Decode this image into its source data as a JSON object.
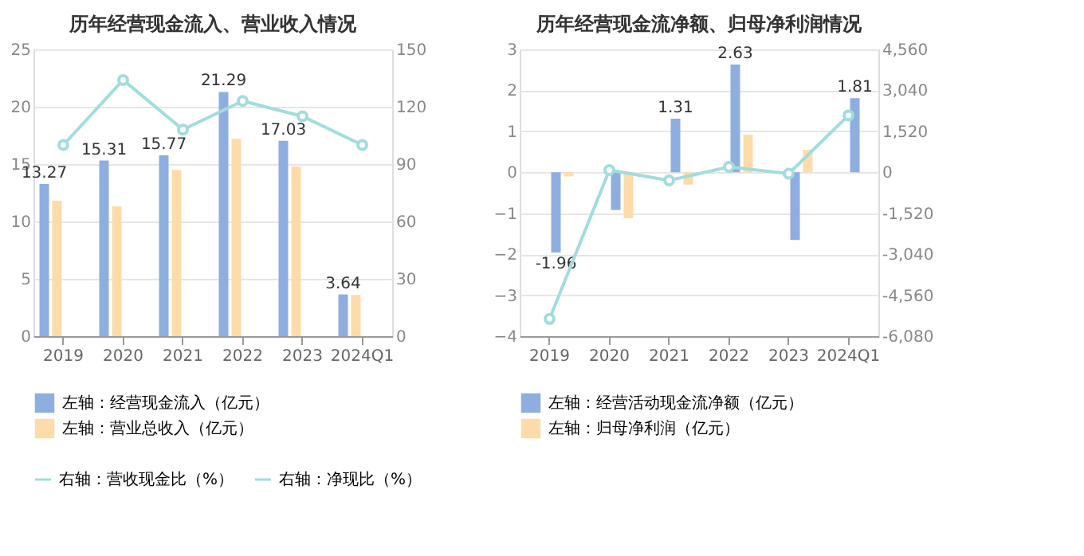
{
  "chart_data": [
    {
      "type": "bar",
      "title": "历年经营现金流入、营业收入情况",
      "categories": [
        "2019",
        "2020",
        "2021",
        "2022",
        "2023",
        "2024Q1"
      ],
      "series": [
        {
          "name": "左轴：经营现金流入（亿元）",
          "color": "#8eaee0",
          "values": [
            13.27,
            15.31,
            15.77,
            21.29,
            17.03,
            3.64
          ],
          "value_labels": [
            "13.27",
            "15.31",
            "15.77",
            "21.29",
            "17.03",
            "3.64"
          ]
        },
        {
          "name": "左轴：营业总收入（亿元）",
          "color": "#fddcaa",
          "values": [
            11.8,
            11.3,
            14.5,
            17.2,
            14.8,
            3.6
          ]
        },
        {
          "name": "右轴：营收现金比（%）",
          "type": "line",
          "axis": "y2",
          "marker": "circle",
          "color": "#a3dcdc",
          "values": [
            100,
            134,
            108,
            123,
            115,
            100
          ]
        }
      ],
      "ylim": [
        0,
        25
      ],
      "yticks": [
        0,
        5,
        10,
        15,
        20,
        25
      ],
      "y2lim": [
        0,
        150
      ],
      "y2ticks": [
        0,
        30,
        60,
        90,
        120,
        150
      ],
      "grid": "y",
      "legend": "bottom"
    },
    {
      "type": "bar",
      "title": "历年经营现金流净额、归母净利润情况",
      "categories": [
        "2019",
        "2020",
        "2021",
        "2022",
        "2023",
        "2024Q1"
      ],
      "series": [
        {
          "name": "左轴：经营活动现金流净额（亿元）",
          "color": "#8eaee0",
          "values": [
            -1.96,
            -0.92,
            1.31,
            2.63,
            -1.65,
            1.81
          ],
          "value_labels": [
            "-1.96",
            null,
            "1.31",
            "2.63",
            null,
            "1.81"
          ]
        },
        {
          "name": "左轴：归母净利润（亿元）",
          "color": "#fddcaa",
          "values": [
            -0.1,
            -1.12,
            -0.3,
            0.92,
            0.55,
            null
          ]
        },
        {
          "name": "右轴：净现比（%）",
          "type": "line",
          "axis": "y2",
          "marker": "circle",
          "color": "#a3dcdc",
          "values": [
            -5440,
            80,
            -300,
            200,
            -50,
            2110
          ]
        }
      ],
      "ylim": [
        -4,
        3
      ],
      "yticks": [
        -4,
        -3,
        -2,
        -1,
        0,
        1,
        2,
        3
      ],
      "y2lim": [
        -6080,
        4560
      ],
      "y2ticks": [
        {
          "value": -6080,
          "label": "-6,080"
        },
        {
          "value": -4560,
          "label": "-4,560"
        },
        {
          "value": -3040,
          "label": "-3,040"
        },
        {
          "value": -1520,
          "label": "-1,520"
        },
        0,
        {
          "value": 1520,
          "label": "1,520"
        },
        {
          "value": 3040,
          "label": "3,040"
        },
        {
          "value": 4560,
          "label": "4,560"
        }
      ],
      "grid": "y",
      "legend": "bottom"
    }
  ]
}
